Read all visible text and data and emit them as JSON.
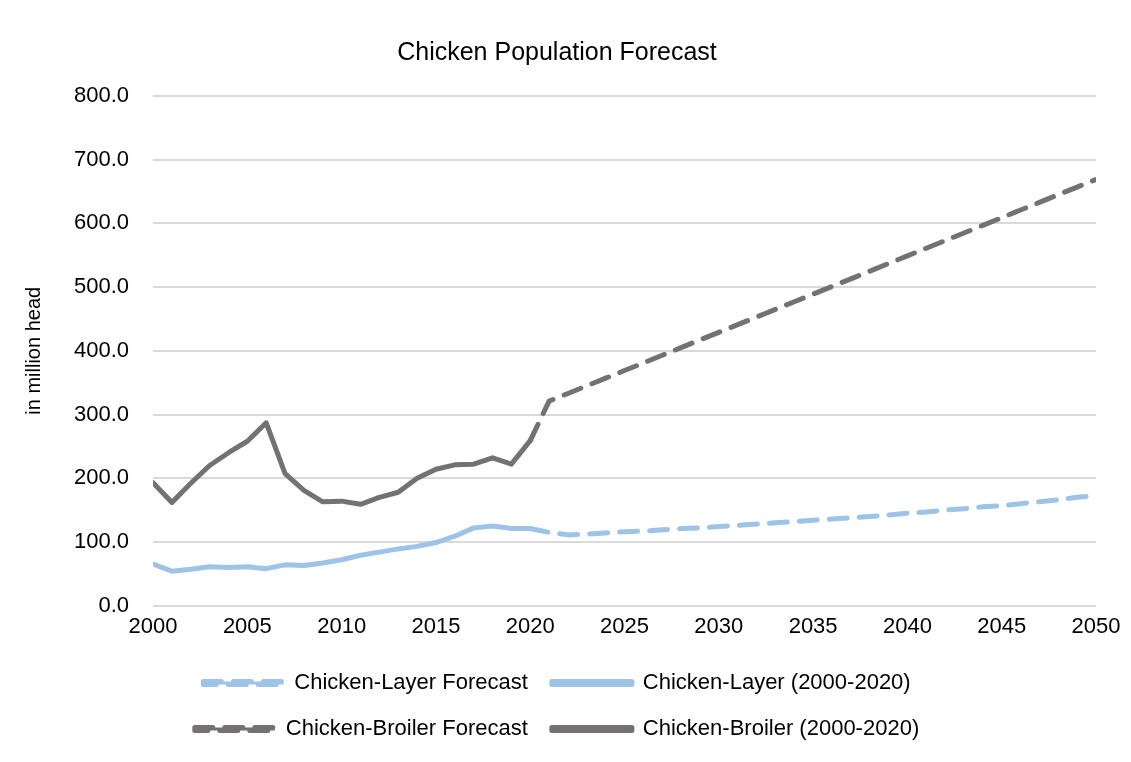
{
  "chart_data": {
    "type": "line",
    "title": "Chicken Population Forecast",
    "ylabel": "in million head",
    "xlim": [
      2000,
      2050
    ],
    "xticks": [
      2000,
      2005,
      2010,
      2015,
      2020,
      2025,
      2030,
      2035,
      2040,
      2045,
      2050
    ],
    "ylim": [
      0,
      800
    ],
    "yticks": [
      {
        "value": 0,
        "label": "0.0"
      },
      {
        "value": 100,
        "label": "100.0"
      },
      {
        "value": 200,
        "label": "200.0"
      },
      {
        "value": 300,
        "label": "300.0"
      },
      {
        "value": 400,
        "label": "400.0"
      },
      {
        "value": 500,
        "label": "500.0"
      },
      {
        "value": 600,
        "label": "600.0"
      },
      {
        "value": 700,
        "label": "700.0"
      },
      {
        "value": 800,
        "label": "800.0"
      }
    ],
    "grid": "y",
    "legend": "bottom",
    "marker": "none",
    "series": [
      {
        "name": "Chicken-Layer Forecast",
        "color": "#9dc3e6",
        "line_style": "dashed",
        "x": [
          2020,
          2021,
          2022,
          2023,
          2024,
          2025,
          2026,
          2027,
          2028,
          2029,
          2030,
          2031,
          2032,
          2033,
          2034,
          2035,
          2036,
          2037,
          2038,
          2039,
          2040,
          2041,
          2042,
          2043,
          2044,
          2045,
          2046,
          2047,
          2048,
          2049,
          2050
        ],
        "values": [
          121,
          115,
          111,
          112,
          114,
          116,
          117,
          119,
          121,
          122,
          124,
          126,
          128,
          130,
          132,
          134,
          136,
          138,
          140,
          142,
          145,
          147,
          150,
          152,
          155,
          157,
          160,
          163,
          166,
          170,
          173
        ]
      },
      {
        "name": "Chicken-Layer (2000-2020)",
        "color": "#9dc3e6",
        "line_style": "solid",
        "x": [
          2000,
          2001,
          2002,
          2003,
          2004,
          2005,
          2006,
          2007,
          2008,
          2009,
          2010,
          2011,
          2012,
          2013,
          2014,
          2015,
          2016,
          2017,
          2018,
          2019,
          2020
        ],
        "values": [
          65,
          54,
          57,
          61,
          60,
          61,
          58,
          64,
          63,
          67,
          72,
          79,
          84,
          89,
          93,
          99,
          109,
          122,
          125,
          121,
          121
        ]
      },
      {
        "name": "Chicken-Broiler Forecast",
        "color": "#767171",
        "line_style": "dashed",
        "x": [
          2020,
          2021,
          2022,
          2023,
          2024,
          2025,
          2026,
          2027,
          2028,
          2029,
          2030,
          2031,
          2032,
          2033,
          2034,
          2035,
          2036,
          2037,
          2038,
          2039,
          2040,
          2041,
          2042,
          2043,
          2044,
          2045,
          2046,
          2047,
          2048,
          2049,
          2050
        ],
        "values": [
          259,
          321,
          333,
          345,
          357,
          369,
          381,
          393,
          405,
          417,
          429,
          441,
          453,
          465,
          477,
          489,
          501,
          513,
          525,
          537,
          549,
          561,
          573,
          585,
          597,
          609,
          621,
          633,
          645,
          657,
          669
        ]
      },
      {
        "name": "Chicken-Broiler (2000-2020)",
        "color": "#767171",
        "line_style": "solid",
        "x": [
          2000,
          2001,
          2002,
          2003,
          2004,
          2005,
          2006,
          2007,
          2008,
          2009,
          2010,
          2011,
          2012,
          2013,
          2014,
          2015,
          2016,
          2017,
          2018,
          2019,
          2020
        ],
        "values": [
          193,
          162,
          192,
          220,
          240,
          258,
          287,
          207,
          181,
          163,
          164,
          159,
          170,
          178,
          200,
          214,
          221,
          222,
          232,
          222,
          259
        ]
      }
    ]
  }
}
